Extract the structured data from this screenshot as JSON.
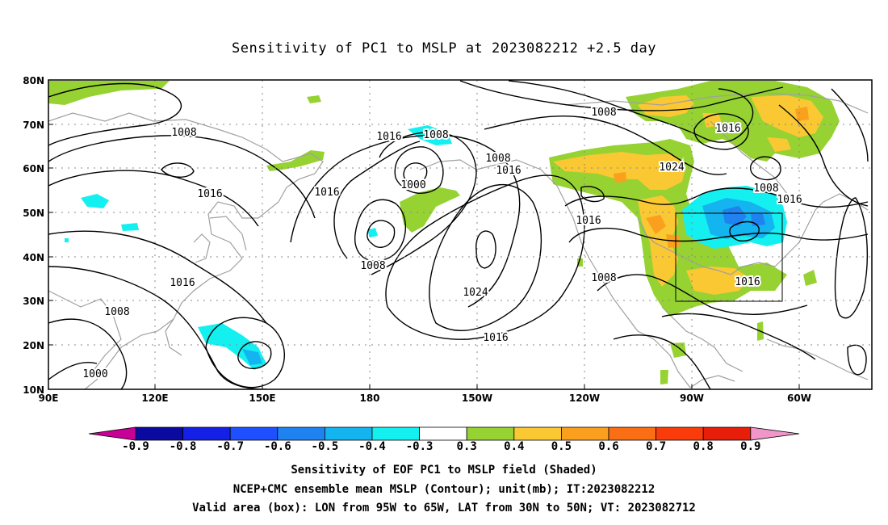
{
  "title": "Sensitivity of PC1 to MSLP at 2023082212 +2.5 day",
  "lat_labels": [
    "80N",
    "70N",
    "60N",
    "50N",
    "40N",
    "30N",
    "20N",
    "10N"
  ],
  "lon_labels": [
    "90E",
    "120E",
    "150E",
    "180",
    "150W",
    "120W",
    "90W",
    "60W"
  ],
  "contour_labels": [
    {
      "text": "1008"
    },
    {
      "text": "1016"
    },
    {
      "text": "1016"
    },
    {
      "text": "1008"
    },
    {
      "text": "1000"
    },
    {
      "text": "1016"
    },
    {
      "text": "1008"
    },
    {
      "text": "1016"
    },
    {
      "text": "1008"
    },
    {
      "text": "1008"
    },
    {
      "text": "1000"
    },
    {
      "text": "1008"
    },
    {
      "text": "1016"
    },
    {
      "text": "1024"
    },
    {
      "text": "1016"
    },
    {
      "text": "1008"
    },
    {
      "text": "1024"
    },
    {
      "text": "1016"
    },
    {
      "text": "1016"
    },
    {
      "text": "1008"
    },
    {
      "text": "1016"
    },
    {
      "text": "1016"
    },
    {
      "text": "1008"
    }
  ],
  "colorbar": {
    "labels": [
      "-0.9",
      "-0.8",
      "-0.7",
      "-0.6",
      "-0.5",
      "-0.4",
      "-0.3",
      "0.3",
      "0.4",
      "0.5",
      "0.6",
      "0.7",
      "0.8",
      "0.9"
    ],
    "colors": [
      "#c80096",
      "#0a0aa0",
      "#1420e6",
      "#1e50ff",
      "#1e82f0",
      "#14b4f0",
      "#14f0f0",
      "#ffffff",
      "#96d232",
      "#fac832",
      "#faa01e",
      "#fa6e14",
      "#fa3c0a",
      "#e61e0a",
      "#f096c8"
    ]
  },
  "captions": [
    "Sensitivity of EOF PC1 to MSLP field (Shaded)",
    "NCEP+CMC ensemble mean MSLP (Contour); unit(mb); IT:2023082212",
    "Valid area (box): LON from 95W to 65W, LAT from 30N to 50N; VT: 2023082712"
  ],
  "valid_box": {
    "lon_min": -95,
    "lon_max": -65,
    "lat_min": 30,
    "lat_max": 50
  }
}
